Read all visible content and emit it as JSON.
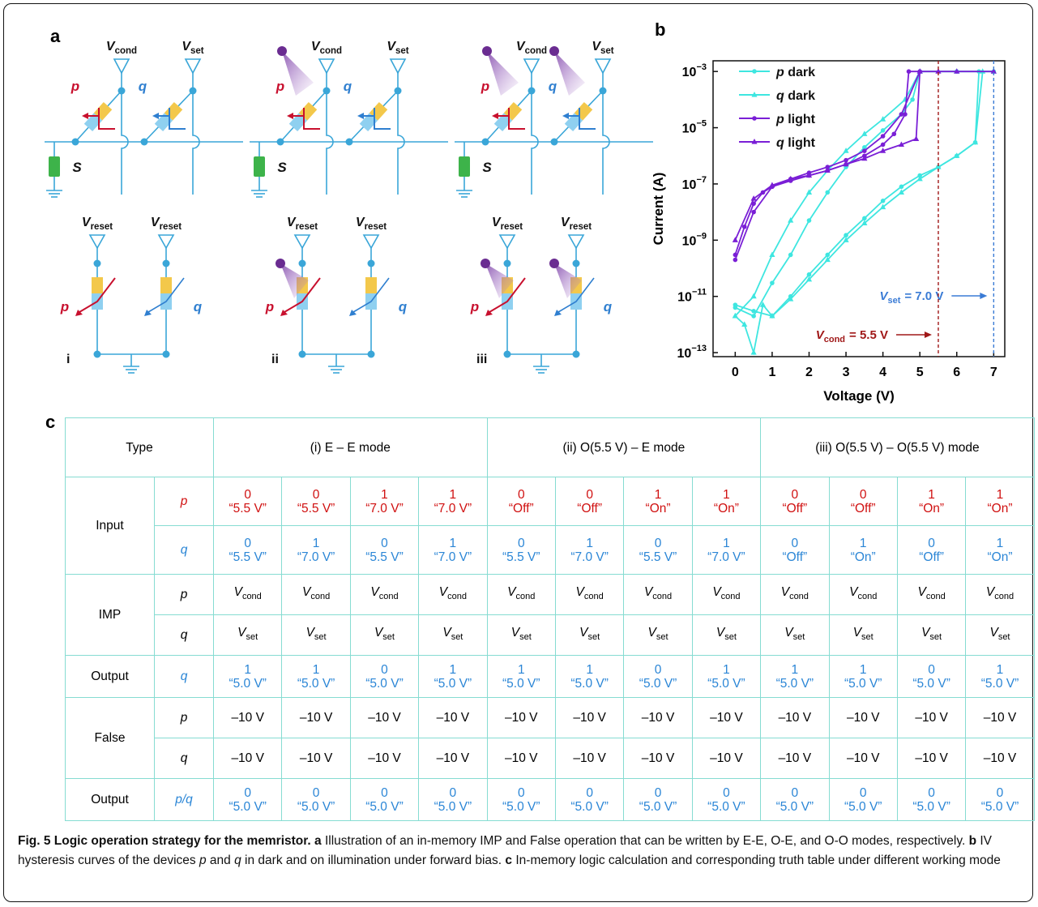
{
  "diagram": {
    "panel_label": "a",
    "v_cond": {
      "symbol": "V",
      "sub": "cond"
    },
    "v_set": {
      "symbol": "V",
      "sub": "set"
    },
    "v_reset": {
      "symbol": "V",
      "sub": "reset"
    },
    "p": "p",
    "q": "q",
    "s": "S",
    "p_color": "#c8102e",
    "q_color": "#2f7fd0",
    "panels": [
      {
        "label": "i",
        "light": [
          false,
          false
        ]
      },
      {
        "label": "ii",
        "light": [
          true,
          false
        ]
      },
      {
        "label": "iii",
        "light": [
          true,
          true
        ]
      }
    ]
  },
  "chart_data": {
    "type": "line",
    "panel_label": "b",
    "x_label": "Voltage (V)",
    "y_label": "Current (A)",
    "ylog": true,
    "xlim": [
      -0.6,
      7.3
    ],
    "xticks": [
      0,
      1,
      2,
      3,
      4,
      5,
      6,
      7
    ],
    "ylim": [
      7.2e-14,
      0.0024
    ],
    "yticks": [
      {
        "value": 1e-13,
        "label": "10−13"
      },
      {
        "value": 1e-11,
        "label": "10−11"
      },
      {
        "value": 1e-09,
        "label": "10−9"
      },
      {
        "value": 1e-07,
        "label": "10−7"
      },
      {
        "value": 1e-05,
        "label": "10−5"
      },
      {
        "value": 0.001,
        "label": "10−3"
      }
    ],
    "series": [
      {
        "name": "p dark",
        "color": "#3ee6e0",
        "marker": "circle",
        "x": [
          0,
          0.5,
          1,
          1.5,
          2,
          2.5,
          3,
          3.5,
          4,
          4.5,
          5,
          5.5,
          6,
          6.5,
          6.6,
          7,
          6,
          5,
          4.8,
          4.5,
          4,
          3.5,
          3,
          2.5,
          2,
          1.5,
          1,
          0.5,
          0
        ],
        "values": [
          5e-12,
          3e-12,
          2e-12,
          1e-11,
          6e-11,
          3e-10,
          1.5e-09,
          6e-09,
          2.5e-08,
          8e-08,
          2e-07,
          4e-07,
          1e-06,
          3e-06,
          0.001,
          0.001,
          0.001,
          0.001,
          0.0001,
          3e-05,
          8e-06,
          2e-06,
          4e-07,
          5e-08,
          5e-09,
          3e-10,
          3e-11,
          2e-12,
          4e-12
        ]
      },
      {
        "name": "q dark",
        "color": "#3ee6e0",
        "marker": "triangle",
        "x": [
          0,
          0.25,
          0.5,
          0.75,
          1,
          1.5,
          2,
          2.5,
          3,
          3.5,
          4,
          4.5,
          5,
          5.5,
          6,
          6.5,
          6.7,
          7,
          6,
          5,
          4.6,
          4,
          3.5,
          3,
          2.5,
          2,
          1.5,
          1,
          0.5,
          0
        ],
        "values": [
          2e-12,
          1e-12,
          1e-13,
          5e-12,
          2e-12,
          8e-12,
          4e-11,
          2e-10,
          1e-09,
          4e-09,
          1.5e-08,
          5e-08,
          1.5e-07,
          4e-07,
          1e-06,
          3e-06,
          0.001,
          0.001,
          0.001,
          0.001,
          0.0001,
          2e-05,
          6e-06,
          1.5e-06,
          3e-07,
          5e-08,
          5e-09,
          3e-10,
          1e-11,
          2e-12
        ]
      },
      {
        "name": "p light",
        "color": "#7a1fd6",
        "marker": "circle",
        "x": [
          0,
          0.25,
          0.5,
          0.75,
          1,
          1.5,
          2,
          2.5,
          3,
          3.5,
          4,
          4.3,
          4.6,
          4.7,
          5,
          4.5,
          4,
          3.5,
          3,
          2.5,
          2,
          1.5,
          1,
          0.5,
          0
        ],
        "values": [
          3e-10,
          3e-09,
          2e-08,
          5e-08,
          8e-08,
          1.3e-07,
          2e-07,
          3e-07,
          5e-07,
          1e-06,
          2.5e-06,
          6e-06,
          3e-05,
          0.001,
          0.001,
          3e-05,
          5e-06,
          1.5e-06,
          7e-07,
          4e-07,
          2.5e-07,
          1.5e-07,
          8e-08,
          1e-08,
          2e-10
        ]
      },
      {
        "name": "q light",
        "color": "#7a1fd6",
        "marker": "triangle",
        "x": [
          0,
          0.5,
          1,
          1.5,
          2,
          2.5,
          3,
          3.5,
          4,
          4.5,
          4.9,
          5,
          5.5,
          6,
          7
        ],
        "values": [
          1e-09,
          3e-08,
          9e-08,
          1.5e-07,
          2e-07,
          3e-07,
          5e-07,
          8e-07,
          1.5e-06,
          2.5e-06,
          4e-06,
          0.001,
          0.001,
          0.001,
          0.001
        ]
      }
    ],
    "annotations": [
      {
        "x": 7.0,
        "symbol": "V",
        "sub": "set",
        "text": "= 7.0 V",
        "color": "#3a7bd5"
      },
      {
        "x": 5.5,
        "symbol": "V",
        "sub": "cond",
        "text": "= 5.5 V",
        "color": "#a01818"
      }
    ]
  },
  "table": {
    "panel_label": "c",
    "header": [
      "Type",
      "(i) E – E mode",
      "(ii) O(5.5 V) – E mode",
      "(iii) O(5.5 V) – O(5.5 V) mode"
    ],
    "groups": [
      {
        "label": "Input",
        "rows": [
          {
            "var": "p",
            "color": "#d01010",
            "cells": [
              "0\n“5.5 V”",
              "0\n“5.5 V”",
              "1\n“7.0 V”",
              "1\n“7.0 V”",
              "0\n“Off”",
              "0\n“Off”",
              "1\n“On”",
              "1\n“On”",
              "0\n“Off”",
              "0\n“Off”",
              "1\n“On”",
              "1\n“On”"
            ]
          },
          {
            "var": "q",
            "color": "#2b86d6",
            "cells": [
              "0\n“5.5 V”",
              "1\n“7.0 V”",
              "0\n“5.5 V”",
              "1\n“7.0 V”",
              "0\n“5.5 V”",
              "1\n“7.0 V”",
              "0\n“5.5 V”",
              "1\n“7.0 V”",
              "0\n“Off”",
              "1\n“On”",
              "0\n“Off”",
              "1\n“On”"
            ]
          }
        ]
      },
      {
        "label": "IMP",
        "rows": [
          {
            "var": "p",
            "color": "#000000",
            "cells": [
              {
                "symbol": "V",
                "sub": "cond"
              },
              {
                "symbol": "V",
                "sub": "cond"
              },
              {
                "symbol": "V",
                "sub": "cond"
              },
              {
                "symbol": "V",
                "sub": "cond"
              },
              {
                "symbol": "V",
                "sub": "cond"
              },
              {
                "symbol": "V",
                "sub": "cond"
              },
              {
                "symbol": "V",
                "sub": "cond"
              },
              {
                "symbol": "V",
                "sub": "cond"
              },
              {
                "symbol": "V",
                "sub": "cond"
              },
              {
                "symbol": "V",
                "sub": "cond"
              },
              {
                "symbol": "V",
                "sub": "cond"
              },
              {
                "symbol": "V",
                "sub": "cond"
              }
            ]
          },
          {
            "var": "q",
            "color": "#000000",
            "cells": [
              {
                "symbol": "V",
                "sub": "set"
              },
              {
                "symbol": "V",
                "sub": "set"
              },
              {
                "symbol": "V",
                "sub": "set"
              },
              {
                "symbol": "V",
                "sub": "set"
              },
              {
                "symbol": "V",
                "sub": "set"
              },
              {
                "symbol": "V",
                "sub": "set"
              },
              {
                "symbol": "V",
                "sub": "set"
              },
              {
                "symbol": "V",
                "sub": "set"
              },
              {
                "symbol": "V",
                "sub": "set"
              },
              {
                "symbol": "V",
                "sub": "set"
              },
              {
                "symbol": "V",
                "sub": "set"
              },
              {
                "symbol": "V",
                "sub": "set"
              }
            ]
          }
        ]
      },
      {
        "label": "Output",
        "rows": [
          {
            "var": "q",
            "color": "#2b86d6",
            "cells": [
              "1\n“5.0 V”",
              "1\n“5.0 V”",
              "0\n“5.0 V”",
              "1\n“5.0 V”",
              "1\n“5.0 V”",
              "1\n“5.0 V”",
              "0\n“5.0 V”",
              "1\n“5.0 V”",
              "1\n“5.0 V”",
              "1\n“5.0 V”",
              "0\n“5.0 V”",
              "1\n“5.0 V”"
            ]
          }
        ]
      },
      {
        "label": "False",
        "rows": [
          {
            "var": "p",
            "color": "#000000",
            "cells": [
              "–10 V",
              "–10 V",
              "–10 V",
              "–10 V",
              "–10 V",
              "–10 V",
              "–10 V",
              "–10 V",
              "–10 V",
              "–10 V",
              "–10 V",
              "–10 V"
            ]
          },
          {
            "var": "q",
            "color": "#000000",
            "cells": [
              "–10 V",
              "–10 V",
              "–10 V",
              "–10 V",
              "–10 V",
              "–10 V",
              "–10 V",
              "–10 V",
              "–10 V",
              "–10 V",
              "–10 V",
              "–10 V"
            ]
          }
        ]
      },
      {
        "label": "Output",
        "rows": [
          {
            "var": "p/q",
            "color": "#2b86d6",
            "cells": [
              "0\n“5.0 V”",
              "0\n“5.0 V”",
              "0\n“5.0 V”",
              "0\n“5.0 V”",
              "0\n“5.0 V”",
              "0\n“5.0 V”",
              "0\n“5.0 V”",
              "0\n“5.0 V”",
              "0\n“5.0 V”",
              "0\n“5.0 V”",
              "0\n“5.0 V”",
              "0\n“5.0 V”"
            ]
          }
        ]
      }
    ]
  },
  "caption": [
    {
      "style": "bold",
      "text": "Fig. 5 Logic operation strategy for the memristor."
    },
    {
      "style": "bold",
      "text": " a"
    },
    {
      "style": "normal",
      "text": " Illustration of an in-memory IMP and False operation that can be written by E-E, O-E, and O-O modes, respectively."
    },
    {
      "style": "bold",
      "text": " b"
    },
    {
      "style": "normal",
      "text": " IV hysteresis curves of the devices "
    },
    {
      "style": "italic",
      "text": "p"
    },
    {
      "style": "normal",
      "text": " and "
    },
    {
      "style": "italic",
      "text": "q"
    },
    {
      "style": "normal",
      "text": " in dark and on illumination under forward bias."
    },
    {
      "style": "bold",
      "text": " c"
    },
    {
      "style": "normal",
      "text": " In-memory logic calculation and corresponding truth table under different working mode"
    }
  ]
}
